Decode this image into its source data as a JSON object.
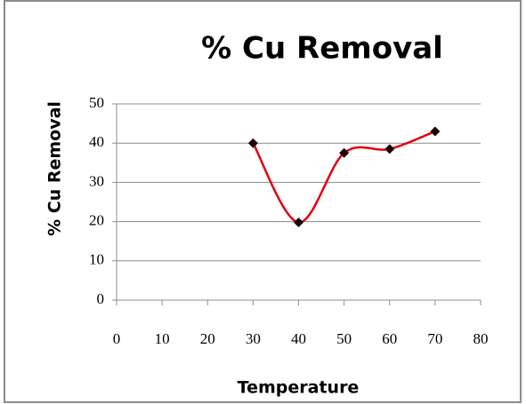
{
  "chart_data": {
    "type": "line",
    "title": "% Cu Removal",
    "xlabel": "Temperature",
    "ylabel": "% Cu Removal",
    "x": [
      30,
      40,
      50,
      60,
      70
    ],
    "series": [
      {
        "name": "% Cu Removal",
        "color": "#e0000f",
        "marker_color": "#1a0000",
        "values": [
          40,
          19.8,
          37.5,
          38.5,
          43
        ]
      }
    ],
    "xlim": [
      0,
      80
    ],
    "xticks": [
      0,
      10,
      20,
      30,
      40,
      50,
      60,
      70,
      80
    ],
    "ylim": [
      0,
      50
    ],
    "yticks": [
      0,
      10,
      20,
      30,
      40,
      50
    ],
    "grid": true,
    "smooth": true,
    "legend": false
  }
}
